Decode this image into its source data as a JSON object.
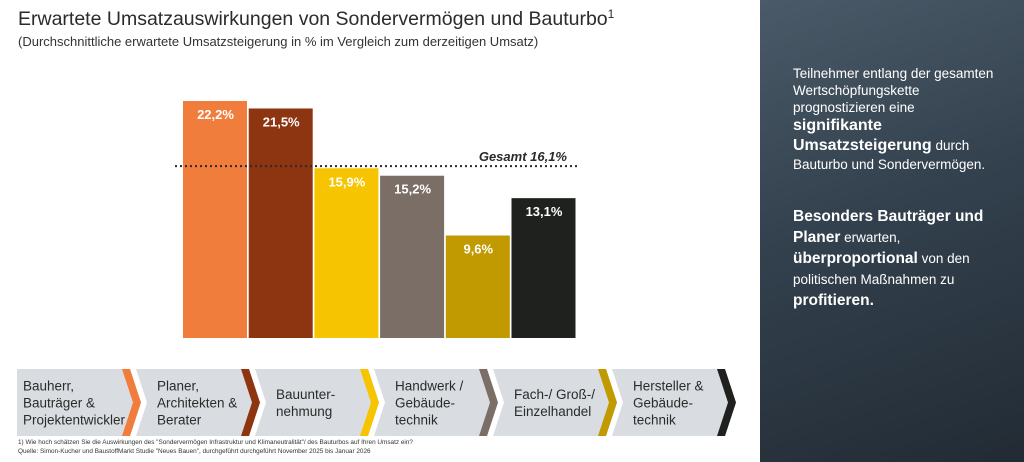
{
  "title": "Erwartete Umsatzauswirkungen von Sondervermögen und Bauturbo",
  "title_superscript": "1",
  "subtitle": "(Durchschnittliche erwartete Umsatzsteigerung in % im Vergleich zum derzeitigen Umsatz)",
  "chart_data": {
    "type": "bar",
    "title": "Erwartete Umsatzauswirkungen von Sondervermögen und Bauturbo",
    "subtitle": "(Durchschnittliche erwartete Umsatzsteigerung in % im Vergleich zum derzeitigen Umsatz)",
    "xlabel": "",
    "ylabel": "",
    "ylim": [
      0,
      22.2
    ],
    "grid": false,
    "categories": [
      "Bauherr, Bauträger & Projektentwickler",
      "Planer, Architekten & Berater",
      "Bauunter-nehmung",
      "Handwerk / Gebäude-technik",
      "Fach-/ Groß-/ Einzelhandel",
      "Hersteller & Gebäude-technik"
    ],
    "values": [
      22.2,
      21.5,
      15.9,
      15.2,
      9.6,
      13.1
    ],
    "value_labels": [
      "22,2%",
      "21,5%",
      "15,9%",
      "15,2%",
      "9,6%",
      "13,1%"
    ],
    "colors": [
      "#f07d3c",
      "#8d3410",
      "#f6c400",
      "#7a6e67",
      "#c09a00",
      "#1f211e"
    ],
    "label_colors": [
      "#ffffff",
      "#ffffff",
      "#ffffff",
      "#ffffff",
      "#ffffff",
      "#ffffff"
    ],
    "reference_line": {
      "value": 16.1,
      "label": "Gesamt 16,1%"
    },
    "category_labels": [
      [
        "Bauherr,",
        "Bauträger &",
        "Projektentwickler"
      ],
      [
        "Planer,",
        "Architekten &",
        "Berater"
      ],
      [
        "Bauunter-",
        "nehmung"
      ],
      [
        "Handwerk /",
        "Gebäude-",
        "technik"
      ],
      [
        "Fach-/ Groß-/",
        "Einzelhandel"
      ],
      [
        "Hersteller &",
        "Gebäude-",
        "technik"
      ]
    ],
    "category_box_color": "#d9dde1"
  },
  "footnote": {
    "line1": "1) Wie hoch schätzen Sie die Auswirkungen des \"Sondervermögen Infrastruktur und Klimaneutralität\"/ des Bauturbos auf Ihren Umsatz ein?",
    "line2": "Quelle: Simon-Kucher und BaustoffMarkt Studie \"Neues Bauen\", durchgeführt durchgeführt November 2025 bis Januar 2026"
  },
  "side": {
    "p1_pre": "Teilnehmer entlang der gesamten Wertschöpfungskette prognostizieren eine",
    "p1_bold": "signifikante Umsatzsteigerung",
    "p1_post": "durch Bauturbo und Sondervermögen.",
    "p2_bold1": "Besonders Bauträger und Planer",
    "p2_mid": "erwarten,",
    "p2_bold2": "überproportional",
    "p2_mid2": "von den politischen Maßnahmen zu",
    "p2_bold3": "profitieren."
  }
}
